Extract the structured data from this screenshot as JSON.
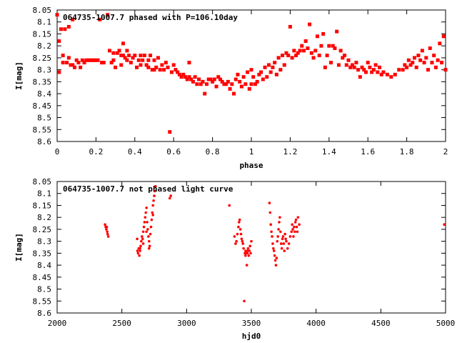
{
  "chart_data": [
    {
      "type": "scatter",
      "title": "064735-1007.7 phased with P=106.10day",
      "xlabel": "phase",
      "ylabel": "I[mag]",
      "xlim": [
        0,
        2
      ],
      "ylim": [
        8.05,
        8.6
      ],
      "y_inverted": true,
      "xticks": [
        0,
        0.2,
        0.4,
        0.6,
        0.8,
        1,
        1.2,
        1.4,
        1.6,
        1.8,
        2
      ],
      "xtick_labels": [
        "0",
        "0.2",
        "0.4",
        "0.6",
        "0.8",
        "1",
        "1.2",
        "1.4",
        "1.6",
        "1.8",
        "2"
      ],
      "yticks": [
        8.05,
        8.1,
        8.15,
        8.2,
        8.25,
        8.3,
        8.35,
        8.4,
        8.45,
        8.5,
        8.55,
        8.6
      ],
      "ytick_labels": [
        "8.05",
        "8.1",
        "8.15",
        "8.2",
        "8.25",
        "8.3",
        "8.35",
        "8.4",
        "8.45",
        "8.5",
        "8.55",
        "8.6"
      ],
      "grid": false,
      "color": "#ff0000",
      "points": [
        [
          0.0,
          8.07
        ],
        [
          0.01,
          8.18
        ],
        [
          0.01,
          8.31
        ],
        [
          0.02,
          8.13
        ],
        [
          0.03,
          8.24
        ],
        [
          0.03,
          8.27
        ],
        [
          0.04,
          8.13
        ],
        [
          0.05,
          8.27
        ],
        [
          0.06,
          8.12
        ],
        [
          0.06,
          8.25
        ],
        [
          0.07,
          8.28
        ],
        [
          0.08,
          8.09
        ],
        [
          0.08,
          8.28
        ],
        [
          0.09,
          8.29
        ],
        [
          0.1,
          8.26
        ],
        [
          0.11,
          8.27
        ],
        [
          0.12,
          8.29
        ],
        [
          0.13,
          8.26
        ],
        [
          0.14,
          8.27
        ],
        [
          0.15,
          8.26
        ],
        [
          0.16,
          8.26
        ],
        [
          0.17,
          8.26
        ],
        [
          0.18,
          8.26
        ],
        [
          0.19,
          8.26
        ],
        [
          0.2,
          8.26
        ],
        [
          0.21,
          8.26
        ],
        [
          0.23,
          8.27
        ],
        [
          0.24,
          8.27
        ],
        [
          0.22,
          8.09
        ],
        [
          0.26,
          8.07
        ],
        [
          0.27,
          8.22
        ],
        [
          0.28,
          8.27
        ],
        [
          0.29,
          8.23
        ],
        [
          0.29,
          8.26
        ],
        [
          0.3,
          8.29
        ],
        [
          0.31,
          8.23
        ],
        [
          0.32,
          8.22
        ],
        [
          0.33,
          8.24
        ],
        [
          0.33,
          8.28
        ],
        [
          0.34,
          8.24
        ],
        [
          0.34,
          8.19
        ],
        [
          0.35,
          8.25
        ],
        [
          0.36,
          8.22
        ],
        [
          0.36,
          8.26
        ],
        [
          0.37,
          8.24
        ],
        [
          0.38,
          8.27
        ],
        [
          0.39,
          8.25
        ],
        [
          0.4,
          8.24
        ],
        [
          0.41,
          8.29
        ],
        [
          0.42,
          8.26
        ],
        [
          0.43,
          8.24
        ],
        [
          0.43,
          8.28
        ],
        [
          0.44,
          8.26
        ],
        [
          0.45,
          8.24
        ],
        [
          0.46,
          8.28
        ],
        [
          0.47,
          8.29
        ],
        [
          0.47,
          8.26
        ],
        [
          0.48,
          8.24
        ],
        [
          0.49,
          8.3
        ],
        [
          0.5,
          8.3
        ],
        [
          0.5,
          8.26
        ],
        [
          0.51,
          8.29
        ],
        [
          0.52,
          8.25
        ],
        [
          0.53,
          8.3
        ],
        [
          0.54,
          8.28
        ],
        [
          0.55,
          8.3
        ],
        [
          0.56,
          8.27
        ],
        [
          0.57,
          8.29
        ],
        [
          0.58,
          8.56
        ],
        [
          0.59,
          8.31
        ],
        [
          0.6,
          8.28
        ],
        [
          0.61,
          8.3
        ],
        [
          0.62,
          8.31
        ],
        [
          0.63,
          8.32
        ],
        [
          0.64,
          8.33
        ],
        [
          0.65,
          8.32
        ],
        [
          0.66,
          8.33
        ],
        [
          0.67,
          8.34
        ],
        [
          0.68,
          8.33
        ],
        [
          0.68,
          8.27
        ],
        [
          0.69,
          8.34
        ],
        [
          0.7,
          8.35
        ],
        [
          0.71,
          8.33
        ],
        [
          0.72,
          8.36
        ],
        [
          0.73,
          8.34
        ],
        [
          0.74,
          8.36
        ],
        [
          0.75,
          8.35
        ],
        [
          0.76,
          8.4
        ],
        [
          0.77,
          8.36
        ],
        [
          0.78,
          8.34
        ],
        [
          0.79,
          8.34
        ],
        [
          0.8,
          8.35
        ],
        [
          0.81,
          8.34
        ],
        [
          0.82,
          8.37
        ],
        [
          0.83,
          8.33
        ],
        [
          0.84,
          8.34
        ],
        [
          0.85,
          8.35
        ],
        [
          0.86,
          8.36
        ],
        [
          0.87,
          8.36
        ],
        [
          0.88,
          8.35
        ],
        [
          0.89,
          8.38
        ],
        [
          0.9,
          8.36
        ],
        [
          0.91,
          8.4
        ],
        [
          0.92,
          8.34
        ],
        [
          0.93,
          8.32
        ],
        [
          0.94,
          8.35
        ],
        [
          0.95,
          8.37
        ],
        [
          0.96,
          8.33
        ],
        [
          0.97,
          8.36
        ],
        [
          0.98,
          8.31
        ],
        [
          0.99,
          8.38
        ],
        [
          1.0,
          8.36
        ],
        [
          1.0,
          8.3
        ],
        [
          1.01,
          8.33
        ],
        [
          1.02,
          8.36
        ],
        [
          1.03,
          8.35
        ],
        [
          1.04,
          8.32
        ],
        [
          1.05,
          8.31
        ],
        [
          1.06,
          8.34
        ],
        [
          1.07,
          8.29
        ],
        [
          1.08,
          8.33
        ],
        [
          1.09,
          8.28
        ],
        [
          1.1,
          8.31
        ],
        [
          1.11,
          8.29
        ],
        [
          1.12,
          8.27
        ],
        [
          1.13,
          8.32
        ],
        [
          1.14,
          8.25
        ],
        [
          1.15,
          8.3
        ],
        [
          1.16,
          8.24
        ],
        [
          1.17,
          8.28
        ],
        [
          1.18,
          8.23
        ],
        [
          1.19,
          8.24
        ],
        [
          1.2,
          8.12
        ],
        [
          1.21,
          8.25
        ],
        [
          1.22,
          8.22
        ],
        [
          1.23,
          8.24
        ],
        [
          1.24,
          8.23
        ],
        [
          1.25,
          8.22
        ],
        [
          1.26,
          8.2
        ],
        [
          1.27,
          8.22
        ],
        [
          1.28,
          8.18
        ],
        [
          1.29,
          8.21
        ],
        [
          1.3,
          8.11
        ],
        [
          1.31,
          8.23
        ],
        [
          1.32,
          8.25
        ],
        [
          1.33,
          8.22
        ],
        [
          1.34,
          8.16
        ],
        [
          1.35,
          8.24
        ],
        [
          1.36,
          8.2
        ],
        [
          1.37,
          8.15
        ],
        [
          1.38,
          8.29
        ],
        [
          1.39,
          8.24
        ],
        [
          1.4,
          8.2
        ],
        [
          1.41,
          8.27
        ],
        [
          1.42,
          8.2
        ],
        [
          1.43,
          8.21
        ],
        [
          1.44,
          8.14
        ],
        [
          1.45,
          8.28
        ],
        [
          1.46,
          8.22
        ],
        [
          1.47,
          8.25
        ],
        [
          1.48,
          8.24
        ],
        [
          1.49,
          8.28
        ],
        [
          1.5,
          8.26
        ],
        [
          1.51,
          8.29
        ],
        [
          1.52,
          8.28
        ],
        [
          1.53,
          8.29
        ],
        [
          1.54,
          8.27
        ],
        [
          1.55,
          8.3
        ],
        [
          1.56,
          8.33
        ],
        [
          1.57,
          8.29
        ],
        [
          1.58,
          8.3
        ],
        [
          1.59,
          8.31
        ],
        [
          1.6,
          8.27
        ],
        [
          1.61,
          8.29
        ],
        [
          1.62,
          8.31
        ],
        [
          1.63,
          8.3
        ],
        [
          1.64,
          8.28
        ],
        [
          1.65,
          8.31
        ],
        [
          1.66,
          8.29
        ],
        [
          1.67,
          8.32
        ],
        [
          1.68,
          8.31
        ],
        [
          1.7,
          8.32
        ],
        [
          1.72,
          8.33
        ],
        [
          1.74,
          8.32
        ],
        [
          1.76,
          8.3
        ],
        [
          1.78,
          8.3
        ],
        [
          1.79,
          8.28
        ],
        [
          1.8,
          8.29
        ],
        [
          1.81,
          8.26
        ],
        [
          1.82,
          8.28
        ],
        [
          1.83,
          8.27
        ],
        [
          1.84,
          8.25
        ],
        [
          1.85,
          8.29
        ],
        [
          1.86,
          8.24
        ],
        [
          1.87,
          8.26
        ],
        [
          1.88,
          8.22
        ],
        [
          1.89,
          8.27
        ],
        [
          1.9,
          8.25
        ],
        [
          1.91,
          8.3
        ],
        [
          1.92,
          8.21
        ],
        [
          1.93,
          8.27
        ],
        [
          1.94,
          8.24
        ],
        [
          1.95,
          8.29
        ],
        [
          1.96,
          8.26
        ],
        [
          1.97,
          8.19
        ],
        [
          1.98,
          8.27
        ],
        [
          1.99,
          8.16
        ],
        [
          2.0,
          8.3
        ]
      ]
    },
    {
      "type": "scatter",
      "title": "064735-1007.7 not phased light curve",
      "xlabel": "hjd0",
      "ylabel": "I[mag]",
      "xlim": [
        2000,
        5000
      ],
      "ylim": [
        8.05,
        8.6
      ],
      "y_inverted": true,
      "xticks": [
        2000,
        2500,
        3000,
        3500,
        4000,
        4500,
        5000
      ],
      "xtick_labels": [
        "2000",
        "2500",
        "3000",
        "3500",
        "4000",
        "4500",
        "5000"
      ],
      "yticks": [
        8.05,
        8.1,
        8.15,
        8.2,
        8.25,
        8.3,
        8.35,
        8.4,
        8.45,
        8.5,
        8.55,
        8.6
      ],
      "ytick_labels": [
        "8.05",
        "8.1",
        "8.15",
        "8.2",
        "8.25",
        "8.3",
        "8.35",
        "8.4",
        "8.45",
        "8.5",
        "8.55",
        "8.6"
      ],
      "grid": false,
      "color": "#ff0000",
      "points": [
        [
          2370,
          8.23
        ],
        [
          2375,
          8.24
        ],
        [
          2380,
          8.25
        ],
        [
          2383,
          8.24
        ],
        [
          2387,
          8.26
        ],
        [
          2390,
          8.27
        ],
        [
          2395,
          8.28
        ],
        [
          2620,
          8.34
        ],
        [
          2625,
          8.35
        ],
        [
          2630,
          8.33
        ],
        [
          2635,
          8.36
        ],
        [
          2640,
          8.34
        ],
        [
          2645,
          8.32
        ],
        [
          2650,
          8.3
        ],
        [
          2655,
          8.28
        ],
        [
          2660,
          8.29
        ],
        [
          2665,
          8.26
        ],
        [
          2670,
          8.24
        ],
        [
          2675,
          8.22
        ],
        [
          2680,
          8.2
        ],
        [
          2685,
          8.18
        ],
        [
          2690,
          8.16
        ],
        [
          2695,
          8.22
        ],
        [
          2700,
          8.25
        ],
        [
          2705,
          8.28
        ],
        [
          2710,
          8.3
        ],
        [
          2715,
          8.32
        ],
        [
          2720,
          8.27
        ],
        [
          2725,
          8.24
        ],
        [
          2730,
          8.21
        ],
        [
          2735,
          8.18
        ],
        [
          2740,
          8.15
        ],
        [
          2745,
          8.13
        ],
        [
          2750,
          8.11
        ],
        [
          2755,
          8.09
        ],
        [
          2760,
          8.07
        ],
        [
          2618,
          8.29
        ],
        [
          2640,
          8.33
        ],
        [
          2665,
          8.31
        ],
        [
          2690,
          8.26
        ],
        [
          2710,
          8.33
        ],
        [
          2740,
          8.19
        ],
        [
          2870,
          8.12
        ],
        [
          2878,
          8.11
        ],
        [
          3330,
          8.15
        ],
        [
          3370,
          8.28
        ],
        [
          3378,
          8.31
        ],
        [
          3385,
          8.3
        ],
        [
          3392,
          8.27
        ],
        [
          3400,
          8.24
        ],
        [
          3405,
          8.22
        ],
        [
          3410,
          8.21
        ],
        [
          3415,
          8.25
        ],
        [
          3420,
          8.27
        ],
        [
          3425,
          8.29
        ],
        [
          3430,
          8.3
        ],
        [
          3435,
          8.31
        ],
        [
          3440,
          8.33
        ],
        [
          3445,
          8.55
        ],
        [
          3450,
          8.35
        ],
        [
          3455,
          8.36
        ],
        [
          3460,
          8.35
        ],
        [
          3465,
          8.4
        ],
        [
          3470,
          8.34
        ],
        [
          3475,
          8.33
        ],
        [
          3480,
          8.36
        ],
        [
          3485,
          8.34
        ],
        [
          3490,
          8.32
        ],
        [
          3495,
          8.35
        ],
        [
          3500,
          8.3
        ],
        [
          3455,
          8.34
        ],
        [
          3470,
          8.35
        ],
        [
          3640,
          8.14
        ],
        [
          3645,
          8.18
        ],
        [
          3650,
          8.23
        ],
        [
          3655,
          8.26
        ],
        [
          3660,
          8.28
        ],
        [
          3665,
          8.31
        ],
        [
          3670,
          8.33
        ],
        [
          3675,
          8.34
        ],
        [
          3680,
          8.36
        ],
        [
          3685,
          8.38
        ],
        [
          3690,
          8.4
        ],
        [
          3695,
          8.37
        ],
        [
          3700,
          8.3
        ],
        [
          3705,
          8.28
        ],
        [
          3710,
          8.25
        ],
        [
          3715,
          8.22
        ],
        [
          3720,
          8.2
        ],
        [
          3725,
          8.26
        ],
        [
          3730,
          8.31
        ],
        [
          3735,
          8.33
        ],
        [
          3740,
          8.29
        ],
        [
          3745,
          8.28
        ],
        [
          3750,
          8.31
        ],
        [
          3755,
          8.34
        ],
        [
          3760,
          8.27
        ],
        [
          3765,
          8.29
        ],
        [
          3770,
          8.3
        ],
        [
          3780,
          8.33
        ],
        [
          3790,
          8.31
        ],
        [
          3800,
          8.28
        ],
        [
          3810,
          8.26
        ],
        [
          3815,
          8.23
        ],
        [
          3820,
          8.25
        ],
        [
          3825,
          8.28
        ],
        [
          3830,
          8.24
        ],
        [
          3835,
          8.26
        ],
        [
          3840,
          8.22
        ],
        [
          3845,
          8.21
        ],
        [
          3850,
          8.24
        ],
        [
          3855,
          8.26
        ],
        [
          3860,
          8.2
        ],
        [
          3870,
          8.23
        ],
        [
          4990,
          8.23
        ]
      ]
    }
  ]
}
